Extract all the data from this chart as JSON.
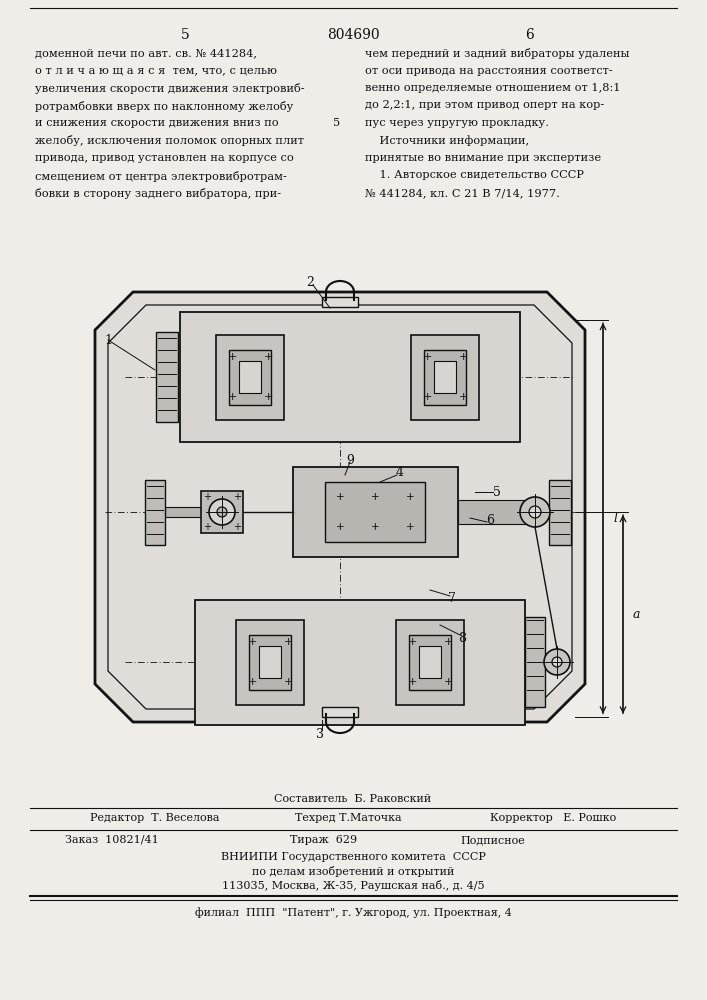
{
  "page_number_left": "5",
  "patent_number": "804690",
  "page_number_right": "6",
  "left_text": [
    "доменной печи по авт. св. № 441284,",
    "о т л и ч а ю щ а я с я  тем, что, с целью",
    "увеличения скорости движения электровиб-",
    "ротрамбовки вверх по наклонному желобу",
    "и снижения скорости движения вниз по",
    "желобу, исключения поломок опорных плит",
    "привода, привод установлен на корпусе со",
    "смещением от центра электровибротрам-",
    "бовки в сторону заднего вибратора, при-"
  ],
  "right_text": [
    "чем передний и задний вибраторы удалены",
    "от оси привода на расстояния соответст-",
    "венно определяемые отношением от 1,8:1",
    "до 2,2:1, при этом привод оперт на кор-",
    "пус через упругую прокладку.",
    "    Источники информации,",
    "принятые во внимание при экспертизе",
    "    1. Авторское свидетельство СССР",
    "№ 441284, кл. С 21 В 7/14, 1977."
  ],
  "line5_marker": "5",
  "footer_editor": "Редактор  Т. Веселова",
  "footer_composer": "Составитель  Б. Раковский",
  "footer_techred": "Техред Т.Маточка",
  "footer_corrector": "Корректор   Е. Рошко",
  "footer_order": "Заказ  10821/41",
  "footer_tirazh": "Тираж  629",
  "footer_podpisnoe": "Подписное",
  "footer_vnipi": "ВНИИПИ Государственного комитета  СССР",
  "footer_dela": "по делам изобретений и открытий",
  "footer_address": "113035, Москва, Ж-35, Раушская наб., д. 4/5",
  "footer_filial": "филиал  ППП  \"Патент\", г. Ужгород, ул. Проектная, 4",
  "bg_color": "#f0ede8",
  "text_color": "#111111",
  "line_color": "#111111"
}
